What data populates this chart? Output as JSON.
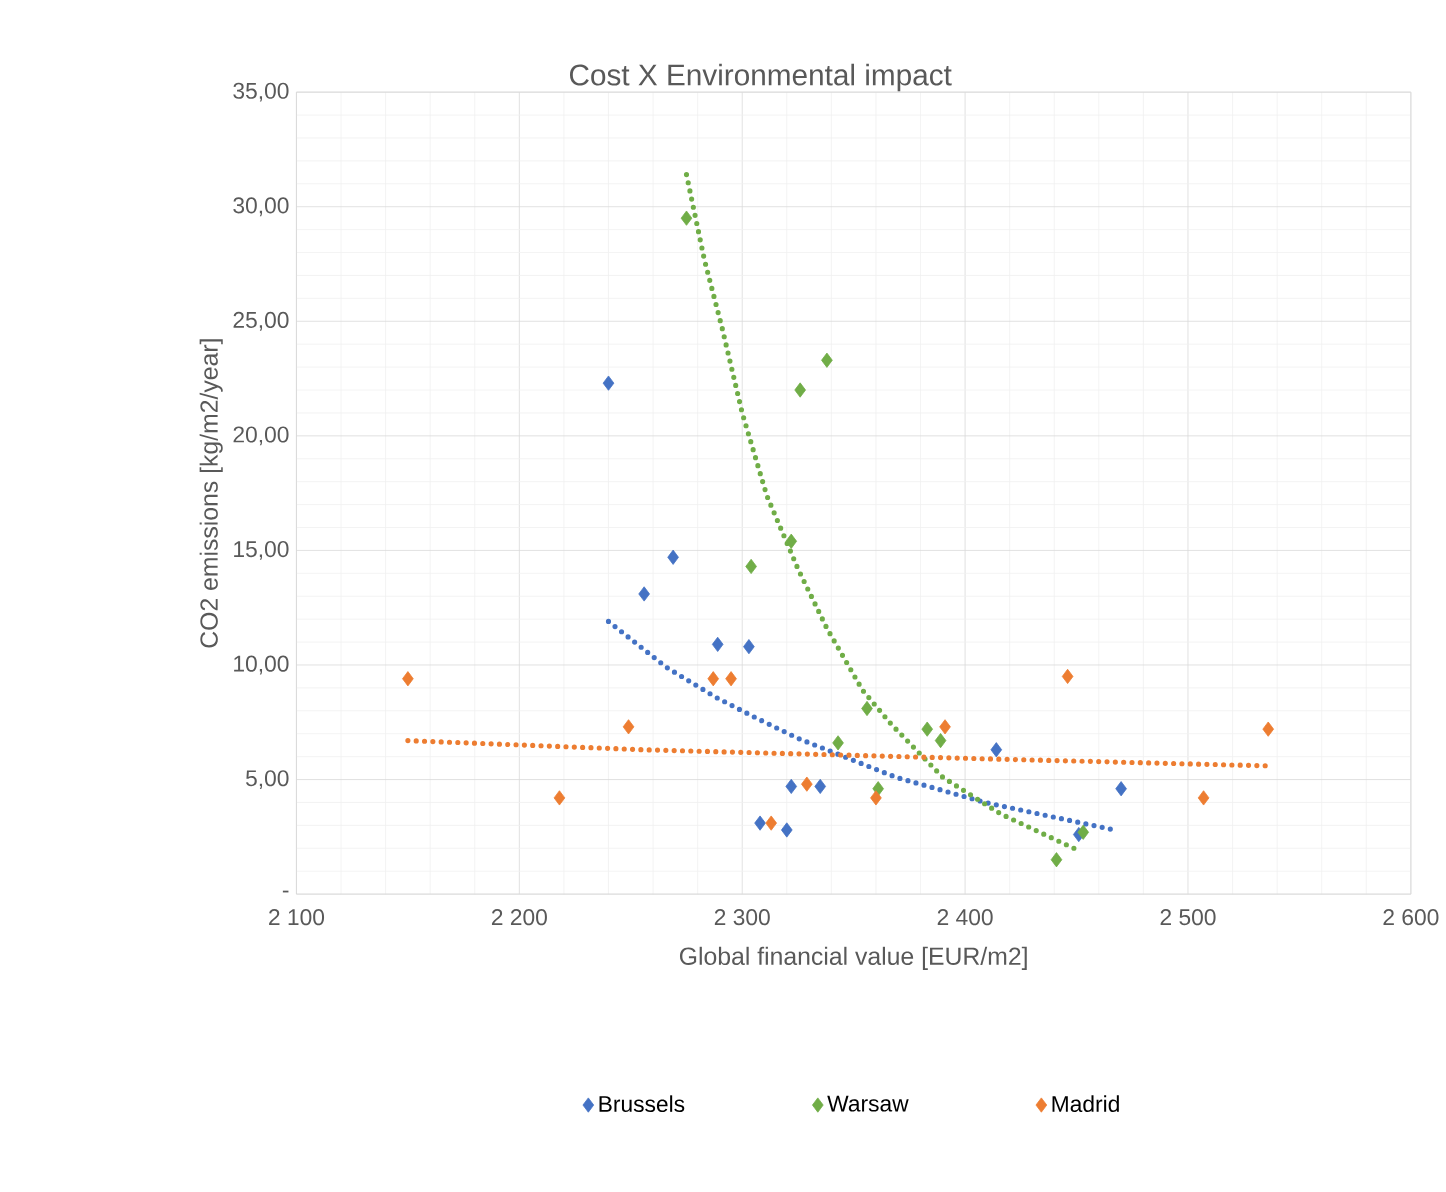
{
  "chart_data": {
    "type": "scatter",
    "title": "Cost X Environmental impact",
    "xlabel": "Global financial value [EUR/m2]",
    "ylabel": "CO2 emissions [kg/m2/year]",
    "xlim": [
      2100,
      2600
    ],
    "xticks": [
      {
        "value": 2100,
        "label": "2 100"
      },
      {
        "value": 2200,
        "label": "2 200"
      },
      {
        "value": 2300,
        "label": "2 300"
      },
      {
        "value": 2400,
        "label": "2 400"
      },
      {
        "value": 2500,
        "label": "2 500"
      },
      {
        "value": 2600,
        "label": "2 600"
      }
    ],
    "ylim": [
      0,
      35
    ],
    "yticks": [
      {
        "value": 0,
        "label": "-"
      },
      {
        "value": 5,
        "label": "5,00"
      },
      {
        "value": 10,
        "label": "10,00"
      },
      {
        "value": 15,
        "label": "15,00"
      },
      {
        "value": 20,
        "label": "20,00"
      },
      {
        "value": 25,
        "label": "25,00"
      },
      {
        "value": 30,
        "label": "30,00"
      },
      {
        "value": 35,
        "label": "35,00"
      }
    ],
    "grid": true,
    "legend": "bottom",
    "marker": "diamond",
    "series": [
      {
        "name": "Brussels",
        "color": "#4472c4",
        "x": [
          2240,
          2269,
          2256,
          2289,
          2303,
          2322,
          2335,
          2308,
          2320,
          2414,
          2470,
          2451
        ],
        "values": [
          22.3,
          14.7,
          13.1,
          10.9,
          10.8,
          4.7,
          4.7,
          3.1,
          2.8,
          6.3,
          4.6,
          2.6
        ]
      },
      {
        "name": "Warsaw",
        "color": "#70ad47",
        "x": [
          2275,
          2338,
          2326,
          2322,
          2304,
          2343,
          2356,
          2383,
          2389,
          2361,
          2453,
          2441
        ],
        "values": [
          29.5,
          23.3,
          22.0,
          15.4,
          14.3,
          6.6,
          8.1,
          7.2,
          6.7,
          4.6,
          2.7,
          1.5
        ]
      },
      {
        "name": "Madrid",
        "color": "#ed7d31",
        "x": [
          2150,
          2218,
          2249,
          2287,
          2295,
          2313,
          2329,
          2360,
          2391,
          2446,
          2507,
          2536
        ],
        "values": [
          9.4,
          4.2,
          7.3,
          9.4,
          9.4,
          3.1,
          4.8,
          4.2,
          7.3,
          9.5,
          4.2,
          7.2
        ]
      },
      {
        "type": "line",
        "line_style": "dotted",
        "marker": "none",
        "color": "#4472c4",
        "x": [
          2240,
          2266,
          2288,
          2306,
          2325,
          2369,
          2409,
          2467
        ],
        "values": [
          11.9,
          9.9,
          8.6,
          7.7,
          6.8,
          5.1,
          4.0,
          2.8
        ]
      },
      {
        "type": "line",
        "line_style": "dotted",
        "marker": "none",
        "color": "#70ad47",
        "x": [
          2275,
          2283,
          2291,
          2300,
          2311,
          2325,
          2338,
          2354,
          2367,
          2390,
          2416,
          2451
        ],
        "values": [
          31.4,
          27.7,
          24.7,
          21.0,
          17.4,
          14.2,
          11.6,
          8.9,
          7.4,
          5.1,
          3.5,
          1.9
        ]
      },
      {
        "type": "line",
        "line_style": "dotted",
        "marker": "none",
        "color": "#ed7d31",
        "x": [
          2150,
          2256,
          2411,
          2535
        ],
        "values": [
          6.7,
          6.3,
          5.9,
          5.6
        ]
      }
    ]
  }
}
